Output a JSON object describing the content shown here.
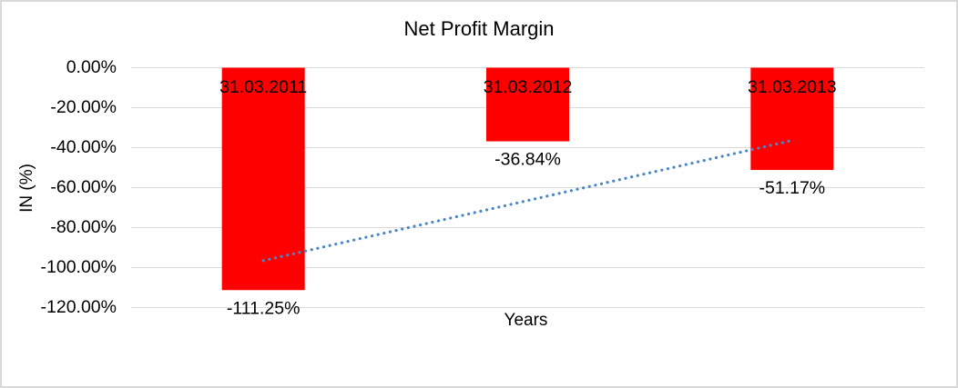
{
  "window": {
    "background_color": "#FFFFFF",
    "border_color": "#D9D9D9"
  },
  "chart_data": {
    "type": "bar",
    "title": "Net Profit Margin",
    "xlabel": "Years",
    "ylabel": "IN (%)",
    "categories": [
      "31.03.2011",
      "31.03.2012",
      "31.03.2013"
    ],
    "values": [
      -111.25,
      -36.84,
      -51.17
    ],
    "value_labels": [
      "-111.25%",
      "-36.84%",
      "-51.17%"
    ],
    "category_label_position": "inside-top-of-bar",
    "value_label_position": "below-bar-end",
    "ylim": [
      -120,
      0
    ],
    "ytick_values": [
      0,
      -20,
      -40,
      -60,
      -80,
      -100,
      -120
    ],
    "ytick_labels": [
      "0.00%",
      "-20.00%",
      "-40.00%",
      "-60.00%",
      "-80.00%",
      "-100.00%",
      "-120.00%"
    ],
    "grid": true,
    "gridline_color": "#D9D9D9",
    "legend": "none",
    "bar_color": "#FF0000",
    "trendline": {
      "type": "linear",
      "style": "dotted",
      "color": "#4A86C8",
      "start_category": "31.03.2011",
      "start_value": -96.5,
      "end_category": "31.03.2013",
      "end_value": -36.4
    }
  }
}
